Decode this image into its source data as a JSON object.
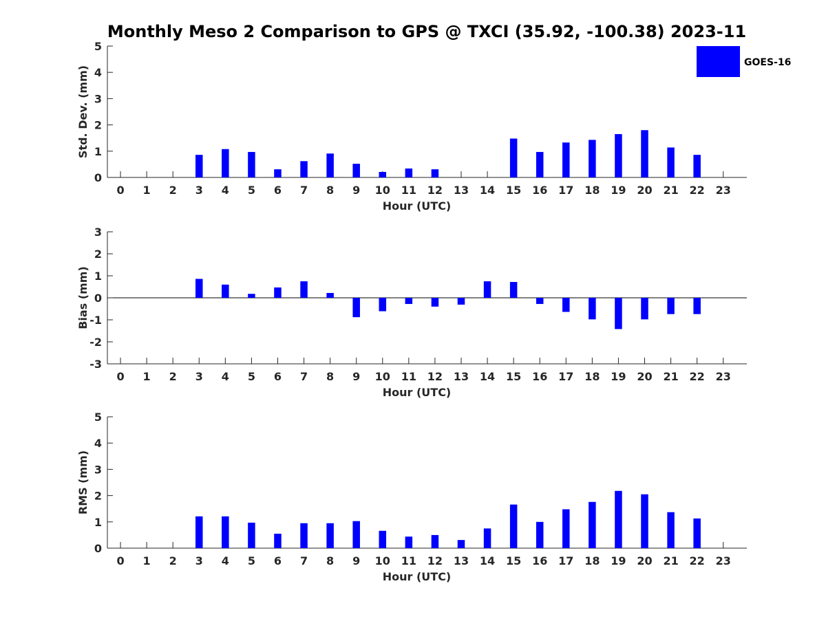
{
  "title": "Monthly Meso 2 Comparison to GPS @ TXCI (35.92, -100.38) 2023-11",
  "legend": {
    "label": "GOES-16",
    "color": "#0000ff",
    "position": "top-right"
  },
  "chart_data": [
    {
      "type": "bar",
      "ylabel": "Std. Dev. (mm)",
      "xlabel": "Hour (UTC)",
      "ylim": [
        0,
        5
      ],
      "yticks": [
        0,
        1,
        2,
        3,
        4,
        5
      ],
      "categories": [
        0,
        1,
        2,
        3,
        4,
        5,
        6,
        7,
        8,
        9,
        10,
        11,
        12,
        13,
        14,
        15,
        16,
        17,
        18,
        19,
        20,
        21,
        22,
        23
      ],
      "series": [
        {
          "values": [
            null,
            null,
            null,
            0.86,
            1.08,
            0.97,
            0.31,
            0.62,
            0.91,
            0.52,
            0.21,
            0.34,
            0.31,
            null,
            null,
            1.48,
            0.97,
            1.33,
            1.43,
            1.65,
            1.8,
            1.14,
            0.86,
            null
          ]
        }
      ]
    },
    {
      "type": "bar",
      "ylabel": "Bias (mm)",
      "xlabel": "Hour (UTC)",
      "ylim": [
        -3,
        3
      ],
      "yticks": [
        -3,
        -2,
        -1,
        0,
        1,
        2,
        3
      ],
      "zero_line": true,
      "categories": [
        0,
        1,
        2,
        3,
        4,
        5,
        6,
        7,
        8,
        9,
        10,
        11,
        12,
        13,
        14,
        15,
        16,
        17,
        18,
        19,
        20,
        21,
        22,
        23
      ],
      "series": [
        {
          "values": [
            null,
            null,
            null,
            0.86,
            0.6,
            0.18,
            0.47,
            0.75,
            0.22,
            -0.88,
            -0.61,
            -0.28,
            -0.4,
            -0.31,
            0.75,
            0.72,
            -0.28,
            -0.64,
            -0.98,
            -1.42,
            -0.98,
            -0.74,
            -0.74,
            null
          ]
        }
      ]
    },
    {
      "type": "bar",
      "ylabel": "RMS (mm)",
      "xlabel": "Hour (UTC)",
      "ylim": [
        0,
        5
      ],
      "yticks": [
        0,
        1,
        2,
        3,
        4,
        5
      ],
      "categories": [
        0,
        1,
        2,
        3,
        4,
        5,
        6,
        7,
        8,
        9,
        10,
        11,
        12,
        13,
        14,
        15,
        16,
        17,
        18,
        19,
        20,
        21,
        22,
        23
      ],
      "series": [
        {
          "values": [
            null,
            null,
            null,
            1.21,
            1.21,
            0.97,
            0.55,
            0.95,
            0.95,
            1.03,
            0.66,
            0.44,
            0.5,
            0.31,
            0.75,
            1.66,
            1.0,
            1.48,
            1.76,
            2.18,
            2.05,
            1.37,
            1.13,
            null
          ]
        }
      ]
    }
  ]
}
